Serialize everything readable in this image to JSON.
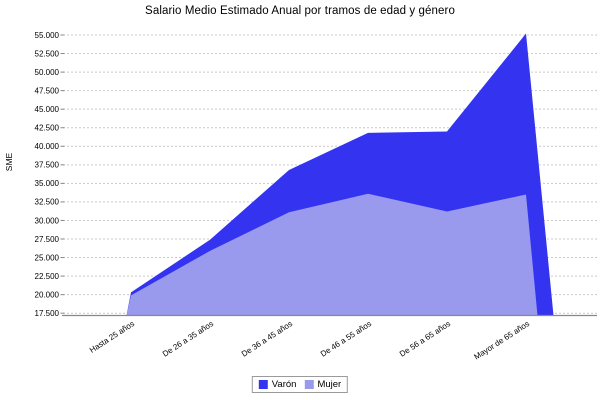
{
  "chart_data": {
    "type": "area",
    "overlaid": true,
    "title": "Salario Medio Estimado Anual por tramos de edad y género",
    "xlabel": "",
    "ylabel": "SME",
    "categories": [
      "Hasta 25 años",
      "De 26 a 35 años",
      "De 36 a 45 años",
      "De 46 a 55 años",
      "De 56 a 65 años",
      "Mayor de 65 años"
    ],
    "series": [
      {
        "name": "Varón",
        "color": "#3333f0",
        "values": [
          20300,
          27400,
          36800,
          41800,
          42000,
          55200
        ]
      },
      {
        "name": "Mujer",
        "color": "#9999ee",
        "values": [
          19900,
          25900,
          31100,
          33600,
          31200,
          33500
        ]
      }
    ],
    "ylim": [
      17200,
      55500
    ],
    "ytick_values": [
      55000,
      52500,
      50000,
      47500,
      45000,
      42500,
      40000,
      37500,
      35000,
      32500,
      30000,
      27500,
      25000,
      22500,
      20000,
      17500
    ],
    "ytick_labels": [
      "55.000",
      "52.500",
      "50.000",
      "47.500",
      "45.000",
      "42.500",
      "40.000",
      "37.500",
      "35.000",
      "32.500",
      "30.000",
      "27.500",
      "25.000",
      "22.500",
      "20.000",
      "17.500"
    ],
    "grid": "horizontal-dashed",
    "gridline_color": "#c9c9c9",
    "axis_line_color": "#888888",
    "legend_position": "bottom",
    "legend_labels": [
      "Varón",
      "Mujer"
    ]
  }
}
